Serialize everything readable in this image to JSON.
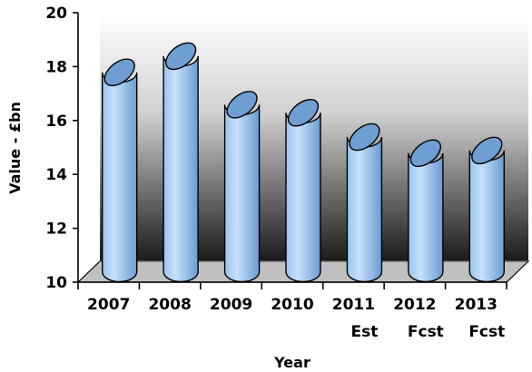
{
  "chart_data": {
    "type": "bar",
    "style": "3d-cylinder",
    "categories": [
      [
        "2007"
      ],
      [
        "2008"
      ],
      [
        "2009"
      ],
      [
        "2010"
      ],
      [
        "2011",
        "Est"
      ],
      [
        "2012",
        "Fcst"
      ],
      [
        "2013",
        "Fcst"
      ]
    ],
    "values": [
      17.4,
      18.0,
      16.2,
      15.9,
      15.0,
      14.4,
      14.5
    ],
    "xlabel": "Year",
    "ylabel": "Value - £bn",
    "ylim": [
      10,
      20
    ],
    "yticks": [
      10,
      12,
      14,
      16,
      18,
      20
    ],
    "grid": false,
    "colors": {
      "bar_light": "#c6e0fa",
      "bar_mid": "#9cc3ec",
      "bar_dark": "#6a9bd3",
      "bar_top": "#6f9ed2",
      "wall_top": "#ffffff",
      "wall_bottom": "#1a1a1a",
      "floor": "#c0c0c0"
    }
  }
}
